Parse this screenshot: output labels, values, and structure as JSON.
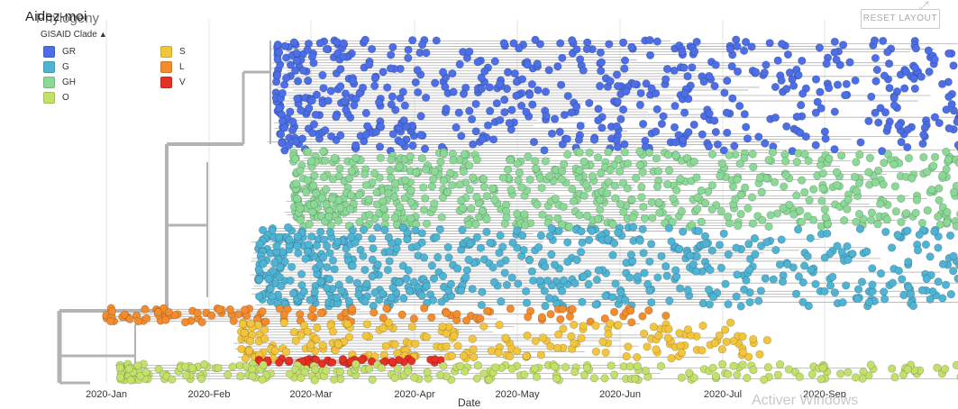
{
  "header": {
    "title_overlay": "Aidez-moi",
    "title": "Phylogeny",
    "reset_label": "RESET LAYOUT",
    "expand_icon": "expand-icon"
  },
  "legend": {
    "title": "GISAID Clade",
    "caret": "^",
    "items": [
      {
        "label": "GR",
        "color": "#4c6ee6"
      },
      {
        "label": "G",
        "color": "#4fb3d4"
      },
      {
        "label": "GH",
        "color": "#8bd996"
      },
      {
        "label": "O",
        "color": "#c2e06a"
      },
      {
        "label": "S",
        "color": "#f2c53d"
      },
      {
        "label": "L",
        "color": "#f28c2e"
      },
      {
        "label": "V",
        "color": "#e63024"
      }
    ]
  },
  "footer": {
    "xlabel_partial": "Date",
    "watermark": "Activer Windows"
  },
  "chart_data": {
    "type": "scatter",
    "description_free": true,
    "x_axis": {
      "ticks": [
        "2020-Jan",
        "2020-Feb",
        "2020-Mar",
        "2020-Apr",
        "2020-May",
        "2020-Jun",
        "2020-Jul",
        "2020-Sep"
      ],
      "range": [
        "2019-12-20",
        "2020-09-25"
      ]
    },
    "grid": true,
    "legend_placement": "top-left",
    "series": [
      {
        "name": "GR",
        "color": "#4c6ee6",
        "date_range": [
          "2020-02-20",
          "2020-09-20"
        ],
        "approx_count": 650
      },
      {
        "name": "GH",
        "color": "#8bd996",
        "date_range": [
          "2020-02-25",
          "2020-09-20"
        ],
        "approx_count": 700
      },
      {
        "name": "G",
        "color": "#4fb3d4",
        "date_range": [
          "2020-02-15",
          "2020-09-25"
        ],
        "approx_count": 650
      },
      {
        "name": "L",
        "color": "#f28c2e",
        "date_range": [
          "2020-01-01",
          "2020-06-15"
        ],
        "approx_count": 120
      },
      {
        "name": "S",
        "color": "#f2c53d",
        "date_range": [
          "2020-02-10",
          "2020-07-15"
        ],
        "approx_count": 220
      },
      {
        "name": "V",
        "color": "#e63024",
        "date_range": [
          "2020-02-15",
          "2020-04-10"
        ],
        "approx_count": 45
      },
      {
        "name": "O",
        "color": "#c2e06a",
        "date_range": [
          "2020-01-05",
          "2020-09-20"
        ],
        "approx_count": 250
      }
    ]
  }
}
